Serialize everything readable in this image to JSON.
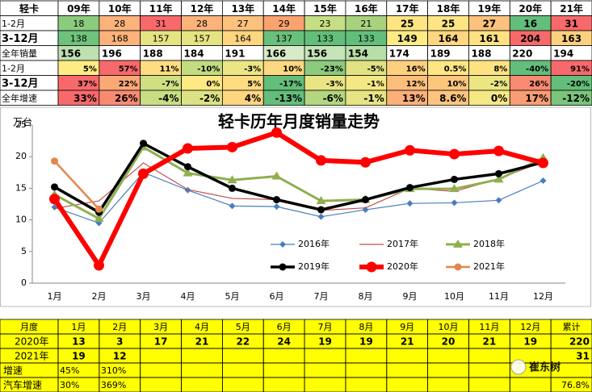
{
  "table_top": {
    "header": [
      "轻卡",
      "09年",
      "10年",
      "11年",
      "12年",
      "13年",
      "14年",
      "15年",
      "16年",
      "17年",
      "18年",
      "19年",
      "20年",
      "21年"
    ],
    "rows": [
      {
        "label": "1-2月",
        "cells": [
          "18",
          "28",
          "31",
          "28",
          "27",
          "29",
          "23",
          "21",
          "25",
          "25",
          "27",
          "16",
          "31"
        ],
        "colors": [
          "#8ccb7e",
          "#fbb27b",
          "#f8696b",
          "#fbb27b",
          "#fcc27d",
          "#f9a36f",
          "#c6df84",
          "#a9d27f",
          "#fde583",
          "#fde583",
          "#fcc27d",
          "#63be7b",
          "#f8696b"
        ]
      },
      {
        "label": "3-12月",
        "cells": [
          "138",
          "168",
          "157",
          "157",
          "164",
          "137",
          "133",
          "133",
          "149",
          "164",
          "161",
          "204",
          "163"
        ],
        "colors": [
          "#6fc27c",
          "#fbb27b",
          "#e5e483",
          "#e5e483",
          "#fed580",
          "#69c07c",
          "#63be7b",
          "#63be7b",
          "#ffeb84",
          "#fed580",
          "#fee182",
          "#f8696b",
          "#fdd07f"
        ]
      },
      {
        "label": "全年销量",
        "cells": [
          "156",
          "196",
          "188",
          "184",
          "191",
          "166",
          "156",
          "154",
          "174",
          "189",
          "188",
          "220",
          "194"
        ],
        "colors": [
          "#bfe0b0",
          "#ffffff",
          "#ffffff",
          "#ffffff",
          "#ffffff",
          "#d8ebc8",
          "#c5e4b7",
          "#b9dfa9",
          "#ffffff",
          "#ffffff",
          "#ffffff",
          "#ffffff",
          "#ffffff"
        ]
      },
      {
        "label": "1-2月",
        "cells": [
          "5%",
          "57%",
          "11%",
          "-10%",
          "-3%",
          "10%",
          "-23%",
          "-5%",
          "16%",
          "0.5%",
          "8%",
          "-40%",
          "91%"
        ],
        "colors": [
          "#ffeb84",
          "#f8696b",
          "#fedc81",
          "#c2dc81",
          "#ebe583",
          "#fed880",
          "#8ccb7e",
          "#e0e283",
          "#fdd07f",
          "#fde683",
          "#fee282",
          "#63be7b",
          "#f8696b"
        ]
      },
      {
        "label": "3-12月",
        "cells": [
          "37%",
          "22%",
          "-7%",
          "0%",
          "5%",
          "-17%",
          "-3%",
          "-1%",
          "12%",
          "10%",
          "-2%",
          "26%",
          "-20%"
        ],
        "colors": [
          "#f8696b",
          "#fba877",
          "#cfe082",
          "#fee983",
          "#fedc81",
          "#63be7b",
          "#e9e583",
          "#f3e884",
          "#fcbe7c",
          "#fdc67d",
          "#ebe583",
          "#f98a72",
          "#63be7b"
        ]
      },
      {
        "label": "全年增速",
        "cells": [
          "33%",
          "26%",
          "-4%",
          "-2%",
          "4%",
          "-13%",
          "-6%",
          "-1%",
          "13%",
          "8.6%",
          "0%",
          "17%",
          "-12%"
        ],
        "colors": [
          "#f8696b",
          "#f98a72",
          "#c9de82",
          "#dce283",
          "#fed680",
          "#63be7b",
          "#b3d780",
          "#e6e483",
          "#fbaf79",
          "#fdc47d",
          "#f3e884",
          "#fa9d75",
          "#7ac47c"
        ]
      }
    ]
  },
  "chart_data": {
    "type": "line",
    "title": "轻卡历年月度销量走势",
    "y_label": "万台",
    "categories": [
      "1月",
      "2月",
      "3月",
      "4月",
      "5月",
      "6月",
      "7月",
      "8月",
      "9月",
      "10月",
      "11月",
      "12月"
    ],
    "ylim": [
      0,
      25
    ],
    "yticks": [
      0,
      5,
      10,
      15,
      20,
      25
    ],
    "series": [
      {
        "name": "2016年",
        "color": "#4a7ebb",
        "marker": "diamond",
        "line_width": 1.2,
        "values": [
          12,
          9.5,
          17.5,
          14.7,
          12.2,
          12.1,
          10.5,
          11.6,
          12.6,
          12.7,
          13.1,
          16.2
        ]
      },
      {
        "name": "2017年",
        "color": "#c0504d",
        "marker": "none",
        "line_width": 1.2,
        "values": [
          11.8,
          13,
          19,
          14.8,
          13.4,
          13.2,
          11.5,
          11.9,
          15,
          14.5,
          16.5,
          19.2
        ]
      },
      {
        "name": "2018年",
        "color": "#8faf4f",
        "marker": "triangle",
        "line_width": 3,
        "values": [
          14,
          10.2,
          21.5,
          17.4,
          16.3,
          16.9,
          13,
          13.2,
          14.9,
          14.9,
          16.4,
          19.8
        ]
      },
      {
        "name": "2019年",
        "color": "#000000",
        "marker": "circle",
        "line_width": 3.5,
        "values": [
          15.2,
          11.2,
          22.1,
          18.4,
          15,
          13.2,
          11.6,
          13.2,
          15.1,
          16.4,
          17.3,
          19.1
        ]
      },
      {
        "name": "2020年",
        "color": "#ff0000",
        "marker": "bigcircle",
        "line_width": 6,
        "values": [
          13.3,
          2.8,
          17.3,
          21.3,
          21.5,
          23.8,
          19.4,
          19.1,
          21,
          20.4,
          20.9,
          19
        ]
      },
      {
        "name": "2021年",
        "color": "#e4874b",
        "marker": "circle",
        "line_width": 2.5,
        "values": [
          19.3,
          11.7,
          null,
          null,
          null,
          null,
          null,
          null,
          null,
          null,
          null,
          null
        ]
      }
    ]
  },
  "table_bottom": {
    "header": [
      "月度",
      "1月",
      "2月",
      "3月",
      "4月",
      "5月",
      "6月",
      "7月",
      "8月",
      "9月",
      "10月",
      "11月",
      "12月",
      "累计"
    ],
    "rows": [
      {
        "label": "2020年",
        "cells": [
          "13",
          "3",
          "17",
          "21",
          "22",
          "24",
          "19",
          "19",
          "21",
          "20",
          "21",
          "19",
          "220"
        ]
      },
      {
        "label": "2021年",
        "cells": [
          "19",
          "12",
          null,
          null,
          null,
          null,
          null,
          null,
          null,
          null,
          null,
          null,
          "31"
        ]
      },
      {
        "label": "增速",
        "cells": [
          "45%",
          "310%",
          null,
          null,
          null,
          null,
          null,
          null,
          null,
          null,
          null,
          null,
          null
        ]
      },
      {
        "label": "汽车增速",
        "cells": [
          "30%",
          "369%",
          null,
          null,
          null,
          null,
          null,
          null,
          null,
          null,
          null,
          null,
          "76.8%"
        ]
      }
    ]
  },
  "watermark": "崔东树"
}
